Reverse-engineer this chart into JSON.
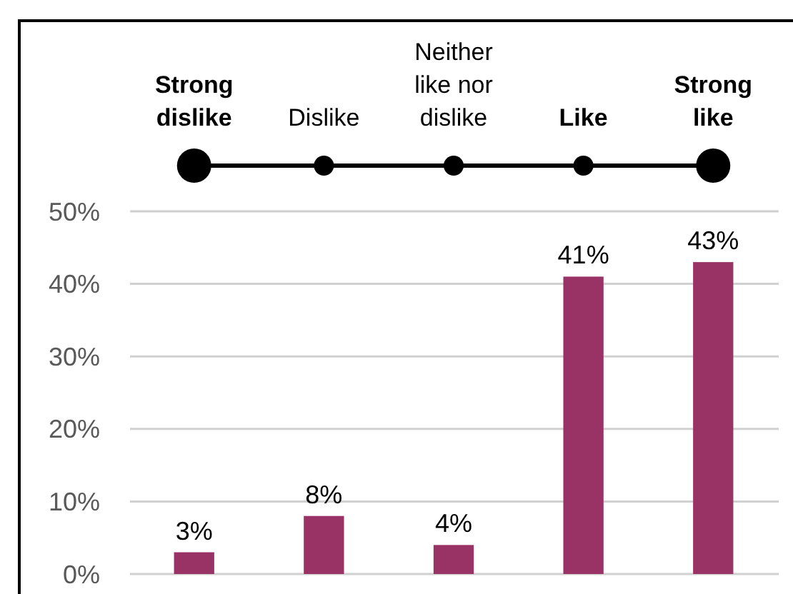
{
  "chart_data": {
    "type": "bar",
    "categories": [
      "Strong dislike",
      "Dislike",
      "Neither like nor dislike",
      "Like",
      "Strong like"
    ],
    "values": [
      3,
      8,
      4,
      41,
      43
    ],
    "value_labels": [
      "3%",
      "8%",
      "4%",
      "41%",
      "43%"
    ],
    "color": "#993366",
    "ylim": [
      0,
      50
    ],
    "yticks": [
      {
        "value": 0,
        "label": "0%"
      },
      {
        "value": 10,
        "label": "10%"
      },
      {
        "value": 20,
        "label": "20%"
      },
      {
        "value": 30,
        "label": "30%"
      },
      {
        "value": 40,
        "label": "40%"
      },
      {
        "value": 50,
        "label": "50%"
      }
    ],
    "grid": "y"
  }
}
